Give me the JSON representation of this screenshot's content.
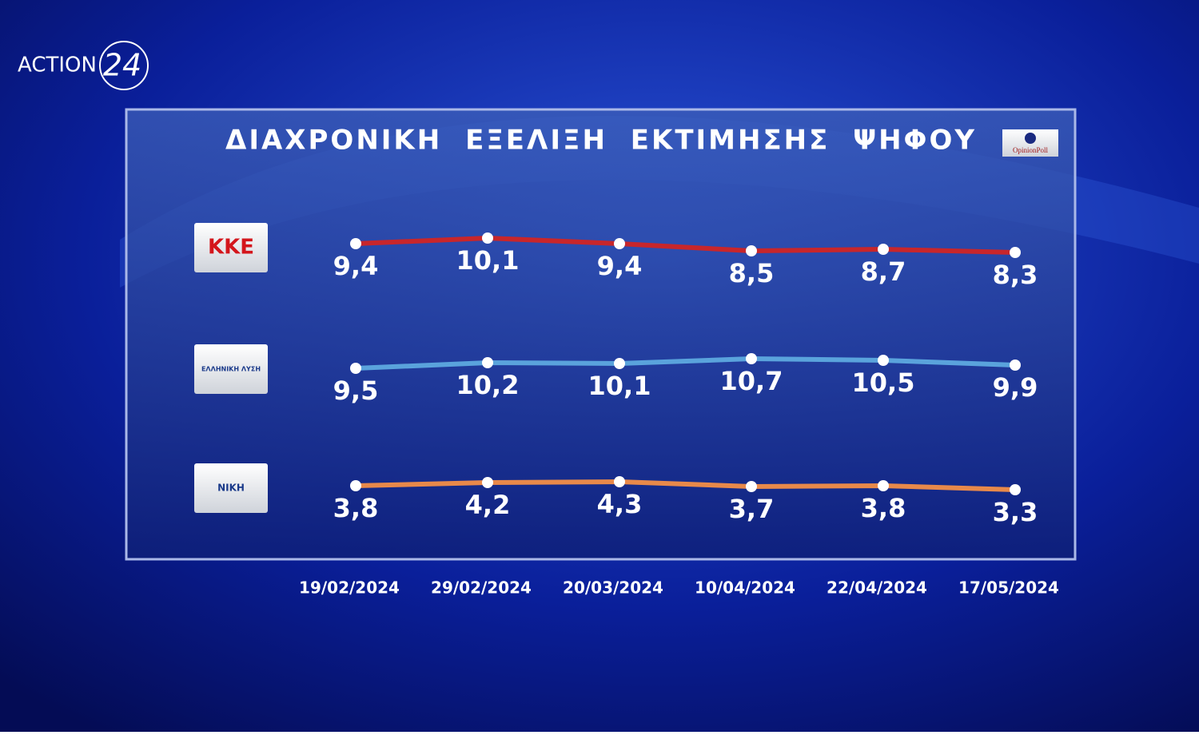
{
  "brand": {
    "channel": "ACTION",
    "channel_number": "24",
    "pollster": "OpinionPoll"
  },
  "chart_data": {
    "type": "line",
    "title": "ΔΙΑΧΡΟΝΙΚΗ ΕΞΕΛΙΞΗ ΕΚΤΙΜΗΣΗΣ ΨΗΦΟΥ",
    "categories": [
      "19/02/2024",
      "29/02/2024",
      "20/03/2024",
      "10/04/2024",
      "22/04/2024",
      "17/05/2024"
    ],
    "series": [
      {
        "name": "ΚΚΕ",
        "color": "#c8262b",
        "values": [
          9.4,
          10.1,
          9.4,
          8.5,
          8.7,
          8.3
        ],
        "value_labels": [
          "9,4",
          "10,1",
          "9,4",
          "8,5",
          "8,7",
          "8,3"
        ]
      },
      {
        "name": "ΕΛΛΗΝΙΚΗ ΛΥΣΗ",
        "color": "#5aa3dc",
        "values": [
          9.5,
          10.2,
          10.1,
          10.7,
          10.5,
          9.9
        ],
        "value_labels": [
          "9,5",
          "10,2",
          "10,1",
          "10,7",
          "10,5",
          "9,9"
        ]
      },
      {
        "name": "ΝΙΚΗ",
        "color": "#e8894a",
        "values": [
          3.8,
          4.2,
          4.3,
          3.7,
          3.8,
          3.3
        ],
        "value_labels": [
          "3,8",
          "4,2",
          "4,3",
          "3,7",
          "3,8",
          "3,3"
        ]
      }
    ]
  }
}
